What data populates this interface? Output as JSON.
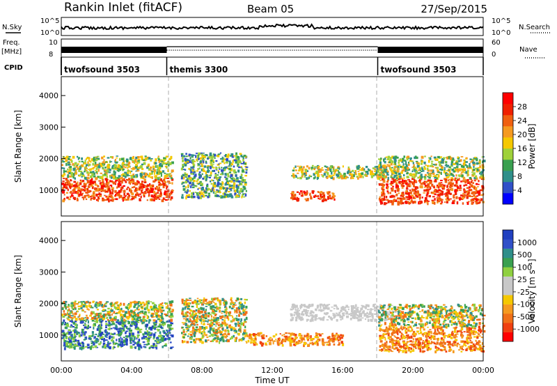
{
  "header": {
    "station": "Rankin Inlet (fitACF)",
    "beam": "Beam 05",
    "date": "27/Sep/2015"
  },
  "status_panel": {
    "nsky_label": "N.Sky",
    "nsky_ticks": [
      "10^5",
      "10^0"
    ],
    "nsearch_label": "N.Search",
    "nsearch_ticks": [
      "10^5",
      "10^0"
    ],
    "freq_label": "Freq.",
    "freq_unit": "[MHz]",
    "freq_ticks": [
      "10",
      "8"
    ],
    "nave_label": "Nave",
    "nave_ticks": [
      "60",
      "0"
    ],
    "cpid_label": "CPID",
    "programs": [
      {
        "name": "twofsound 3503",
        "start_hour": 0,
        "end_hour": 6
      },
      {
        "name": "themis 3300",
        "start_hour": 6,
        "end_hour": 18
      },
      {
        "name": "twofsound 3503",
        "start_hour": 18,
        "end_hour": 24
      }
    ]
  },
  "chart_data": [
    {
      "type": "heatmap",
      "panel": "power",
      "ylabel": "Slant Range [km]",
      "xlim": [
        0,
        24
      ],
      "ylim": [
        180,
        4600
      ],
      "yticks": [
        1000,
        2000,
        3000,
        4000
      ],
      "colorbar": {
        "label": "Power [dB]",
        "ticks": [
          "28",
          "24",
          "20",
          "16",
          "12",
          "8",
          "4"
        ],
        "colors": [
          "#0000ff",
          "#3050c8",
          "#2f8f8a",
          "#3aa050",
          "#9fd13a",
          "#f5c800",
          "#f59a20",
          "#f06010",
          "#f02000",
          "#ff0000"
        ]
      },
      "scatter_bands": [
        {
          "start_hour": 0.0,
          "end_hour": 6.3,
          "min_km": 700,
          "max_km": 1400,
          "level": "high"
        },
        {
          "start_hour": 0.0,
          "end_hour": 6.3,
          "min_km": 1400,
          "max_km": 2100,
          "level": "mid"
        },
        {
          "start_hour": 6.8,
          "end_hour": 10.5,
          "min_km": 800,
          "max_km": 2200,
          "level": "low"
        },
        {
          "start_hour": 13.0,
          "end_hour": 15.5,
          "min_km": 700,
          "max_km": 1000,
          "level": "high"
        },
        {
          "start_hour": 13.0,
          "end_hour": 18.5,
          "min_km": 1400,
          "max_km": 1800,
          "level": "mid"
        },
        {
          "start_hour": 18.0,
          "end_hour": 24.0,
          "min_km": 600,
          "max_km": 1400,
          "level": "high"
        },
        {
          "start_hour": 18.0,
          "end_hour": 24.0,
          "min_km": 1400,
          "max_km": 2100,
          "level": "mid"
        }
      ]
    },
    {
      "type": "heatmap",
      "panel": "velocity",
      "ylabel": "Slant Range [km]",
      "xlabel": "Time UT",
      "xlim": [
        0,
        24
      ],
      "ylim": [
        180,
        4600
      ],
      "yticks": [
        1000,
        2000,
        3000,
        4000
      ],
      "xticks": [
        "00:00",
        "04:00",
        "08:00",
        "12:00",
        "16:00",
        "20:00",
        "00:00"
      ],
      "colorbar": {
        "label": "Velocity [m s⁻¹]",
        "ticks": [
          "1000",
          "500",
          "100",
          "25",
          "-25",
          "-100",
          "-500",
          "-1000"
        ],
        "colors": [
          "#ff0000",
          "#f04010",
          "#f07018",
          "#f59a20",
          "#f5c800",
          "#c8c8c8",
          "#c8c8c8",
          "#8fd040",
          "#3aa050",
          "#2f8f8a",
          "#3050c8",
          "#2040c0"
        ]
      },
      "scatter_bands": [
        {
          "start_hour": 0.0,
          "end_hour": 6.3,
          "min_km": 600,
          "max_km": 1500,
          "level": "toward"
        },
        {
          "start_hour": 0.0,
          "end_hour": 6.3,
          "min_km": 1500,
          "max_km": 2100,
          "level": "mixed"
        },
        {
          "start_hour": 6.8,
          "end_hour": 10.5,
          "min_km": 800,
          "max_km": 2200,
          "level": "mixed"
        },
        {
          "start_hour": 10.5,
          "end_hour": 16.0,
          "min_km": 700,
          "max_km": 1100,
          "level": "away"
        },
        {
          "start_hour": 13.0,
          "end_hour": 19.0,
          "min_km": 1500,
          "max_km": 2000,
          "level": "ground"
        },
        {
          "start_hour": 18.0,
          "end_hour": 24.0,
          "min_km": 500,
          "max_km": 1300,
          "level": "away"
        },
        {
          "start_hour": 18.0,
          "end_hour": 24.0,
          "min_km": 1300,
          "max_km": 2000,
          "level": "mixed"
        }
      ]
    }
  ]
}
